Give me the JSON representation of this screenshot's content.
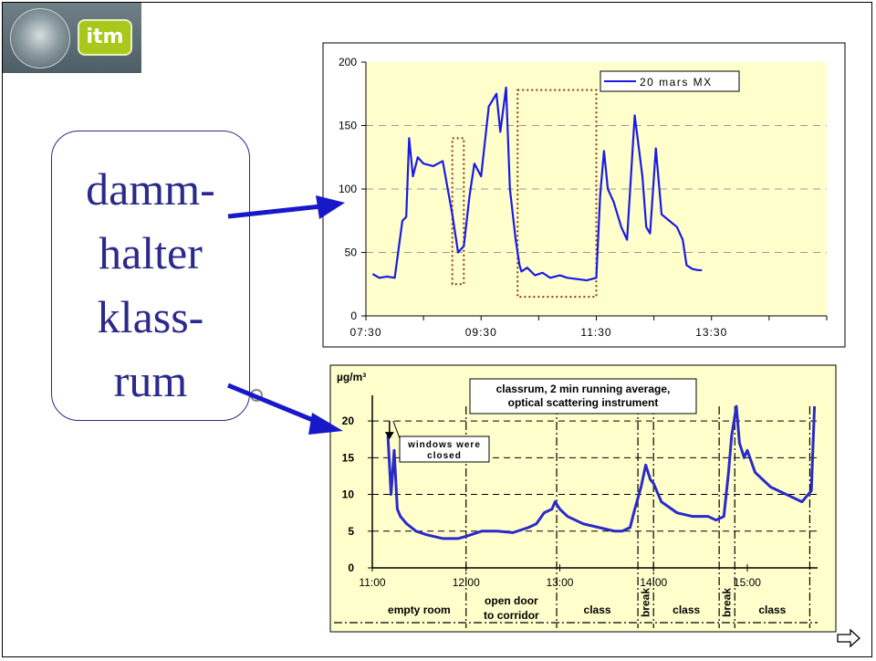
{
  "callout": {
    "lines": [
      "damm-",
      "halter",
      "klass-",
      "rum"
    ]
  },
  "logo": {
    "badge_text": "itm"
  },
  "chart_data": [
    {
      "type": "line",
      "title": "",
      "xlabel": "",
      "ylabel": "",
      "xlim": [
        "07:30",
        "15:30"
      ],
      "ylim": [
        0,
        200
      ],
      "yticks": [
        0,
        50,
        100,
        150,
        200
      ],
      "xticks": [
        "07:30",
        "09:30",
        "11:30",
        "13:30"
      ],
      "grid": true,
      "legend_position": "top-right",
      "series": [
        {
          "name": "20 mars MX",
          "color": "#1a1ae6",
          "x": [
            "07:37",
            "07:44",
            "07:52",
            "08:00",
            "08:08",
            "08:12",
            "08:15",
            "08:19",
            "08:24",
            "08:30",
            "08:40",
            "08:50",
            "09:00",
            "09:06",
            "09:12",
            "09:18",
            "09:23",
            "09:30",
            "09:38",
            "09:46",
            "09:50",
            "09:56",
            "10:00",
            "10:06",
            "10:10",
            "10:12",
            "10:18",
            "10:26",
            "10:34",
            "10:42",
            "10:52",
            "11:00",
            "11:10",
            "11:20",
            "11:30",
            "11:34",
            "11:38",
            "11:42",
            "11:48",
            "11:56",
            "12:02",
            "12:10",
            "12:18",
            "12:22",
            "12:26",
            "12:32",
            "12:38",
            "12:46",
            "12:54",
            "13:00",
            "13:04",
            "13:10",
            "13:16",
            "13:20"
          ],
          "values": [
            33,
            30,
            31,
            30,
            75,
            78,
            140,
            110,
            125,
            120,
            118,
            122,
            80,
            50,
            55,
            95,
            120,
            110,
            165,
            175,
            145,
            180,
            100,
            60,
            40,
            35,
            38,
            32,
            34,
            30,
            32,
            30,
            29,
            28,
            30,
            95,
            130,
            100,
            90,
            70,
            60,
            158,
            110,
            70,
            65,
            132,
            80,
            75,
            70,
            60,
            40,
            37,
            36,
            36
          ]
        }
      ],
      "annotations": [
        {
          "type": "dotted-box",
          "x_range": [
            "09:00",
            "09:12"
          ],
          "y_range": [
            25,
            140
          ]
        },
        {
          "type": "dotted-box",
          "x_range": [
            "10:08",
            "11:30"
          ],
          "y_range": [
            15,
            178
          ]
        }
      ]
    },
    {
      "type": "line",
      "title": "classrum, 2 min running average, optical scattering instrument",
      "title_lines": [
        "classrum, 2 min running average,",
        "optical scattering instrument"
      ],
      "ylabel": "µg/m³",
      "xlabel": "",
      "xlim": [
        "11:00",
        "15:45"
      ],
      "ylim": [
        0,
        22
      ],
      "yticks": [
        0,
        5,
        10,
        15,
        20
      ],
      "xticks": [
        "11:00",
        "12:00",
        "13:00",
        "14:00",
        "15:00"
      ],
      "grid": true,
      "series": [
        {
          "name": "",
          "color": "#2a2ac8",
          "x": [
            "11:10",
            "11:12",
            "11:14",
            "11:16",
            "11:18",
            "11:22",
            "11:28",
            "11:35",
            "11:45",
            "11:55",
            "12:00",
            "12:10",
            "12:20",
            "12:30",
            "12:40",
            "12:45",
            "12:50",
            "12:55",
            "12:57",
            "13:00",
            "13:05",
            "13:15",
            "13:25",
            "13:35",
            "13:40",
            "13:45",
            "13:48",
            "13:52",
            "13:55",
            "13:58",
            "14:00",
            "14:05",
            "14:15",
            "14:25",
            "14:35",
            "14:40",
            "14:45",
            "14:48",
            "14:50",
            "14:53",
            "14:55",
            "14:58",
            "15:00",
            "15:05",
            "15:15",
            "15:25",
            "15:35",
            "15:39",
            "15:41",
            "15:43"
          ],
          "values": [
            18,
            10,
            16,
            8,
            7,
            6,
            5,
            4.5,
            4,
            4,
            4.3,
            5,
            5,
            4.8,
            5.5,
            6,
            7.5,
            8,
            9,
            8,
            7,
            6,
            5.5,
            5,
            5,
            5.5,
            8,
            11,
            14,
            12,
            11.5,
            9,
            7.5,
            7,
            7,
            6.5,
            7,
            13,
            18,
            22,
            17,
            15,
            16,
            13,
            11,
            10,
            9,
            10,
            10.5,
            22
          ]
        }
      ],
      "annotations": [
        {
          "type": "callout",
          "text": "windows were closed",
          "target_x": "11:11",
          "target_y": 20
        }
      ],
      "periods": [
        {
          "label": "empty room",
          "from": "11:00",
          "to": "12:00"
        },
        {
          "label": "open door to corridor",
          "label_lines": [
            "open door",
            "to corridor"
          ],
          "from": "12:00",
          "to": "12:58"
        },
        {
          "label": "class",
          "from": "12:58",
          "to": "13:50"
        },
        {
          "label": "break",
          "from": "13:50",
          "to": "14:00"
        },
        {
          "label": "class",
          "from": "14:00",
          "to": "14:42"
        },
        {
          "label": "break",
          "from": "14:42",
          "to": "14:52"
        },
        {
          "label": "class",
          "from": "14:52",
          "to": "15:40"
        }
      ]
    }
  ]
}
